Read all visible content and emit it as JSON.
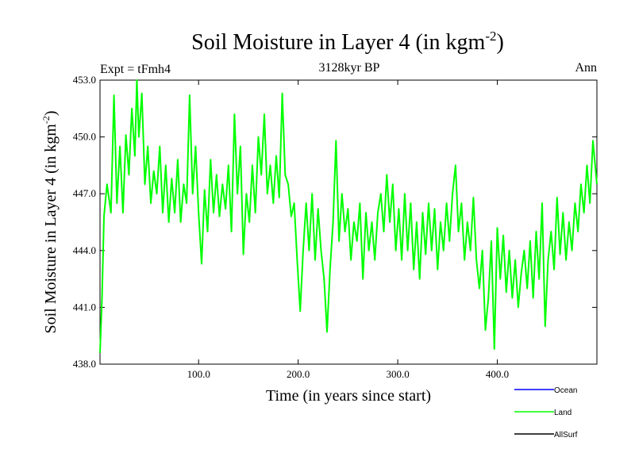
{
  "chart_data": {
    "type": "line",
    "title": "Soil Moisture in Layer 4 (in kgm",
    "title_sup": "-2",
    "title_close": ")",
    "subtitle": "3128kyr BP",
    "left_label": "Expt = tFmh4",
    "right_label": "Ann",
    "xlabel": "Time (in years since start)",
    "ylabel": "Soil Moisture in Layer 4 (in kgm",
    "ylabel_sup": "-2",
    "ylabel_close": ")",
    "xlim": [
      1,
      500
    ],
    "ylim": [
      438.0,
      453.0
    ],
    "xticks": [
      100,
      200,
      300,
      400
    ],
    "xtick_labels": [
      "100.0",
      "200.0",
      "300.0",
      "400.0"
    ],
    "yticks": [
      438,
      441,
      444,
      447,
      450,
      453
    ],
    "ytick_labels": [
      "438.0",
      "441.0",
      "444.0",
      "447.0",
      "450.0",
      "453.0"
    ],
    "legend": [
      {
        "name": "Ocean",
        "color": "#0000ff"
      },
      {
        "name": "Land",
        "color": "#00ff00"
      },
      {
        "name": "AllSurf",
        "color": "#000000"
      }
    ],
    "series": [
      {
        "name": "Land",
        "color": "#00ff00",
        "x": [
          1,
          3,
          5,
          8,
          12,
          15,
          18,
          21,
          24,
          27,
          30,
          33,
          36,
          38,
          40,
          43,
          46,
          49,
          52,
          55,
          58,
          61,
          64,
          67,
          70,
          73,
          76,
          79,
          82,
          85,
          88,
          91,
          94,
          97,
          100,
          103,
          106,
          109,
          112,
          115,
          118,
          121,
          124,
          127,
          130,
          133,
          136,
          139,
          142,
          145,
          148,
          151,
          154,
          157,
          160,
          163,
          166,
          169,
          172,
          175,
          178,
          181,
          184,
          187,
          190,
          193,
          196,
          199,
          202,
          205,
          208,
          211,
          214,
          217,
          220,
          223,
          226,
          229,
          232,
          235,
          238,
          241,
          244,
          247,
          250,
          253,
          256,
          259,
          262,
          265,
          268,
          271,
          274,
          277,
          280,
          283,
          286,
          289,
          292,
          295,
          298,
          301,
          304,
          307,
          310,
          313,
          316,
          319,
          322,
          325,
          328,
          331,
          334,
          337,
          340,
          343,
          346,
          349,
          352,
          355,
          358,
          361,
          364,
          367,
          370,
          373,
          376,
          379,
          382,
          385,
          388,
          391,
          394,
          397,
          400,
          403,
          406,
          409,
          412,
          415,
          418,
          421,
          424,
          427,
          430,
          433,
          436,
          439,
          442,
          445,
          448,
          451,
          454,
          457,
          460,
          463,
          466,
          469,
          472,
          475,
          478,
          481,
          484,
          487,
          490,
          493,
          496,
          500
        ],
        "values": [
          438.6,
          441.5,
          445.8,
          447.5,
          446.0,
          452.2,
          446.5,
          449.5,
          446.0,
          450.1,
          448.0,
          451.5,
          449.0,
          453.0,
          450.0,
          452.3,
          447.5,
          449.5,
          446.5,
          448.2,
          447.0,
          449.5,
          446.0,
          448.5,
          445.5,
          447.8,
          446.0,
          448.8,
          445.5,
          447.5,
          446.5,
          452.2,
          447.0,
          449.5,
          446.0,
          443.3,
          447.2,
          445.0,
          448.8,
          446.0,
          448.0,
          445.8,
          447.5,
          446.2,
          448.5,
          445.0,
          451.2,
          447.0,
          449.5,
          443.8,
          447.0,
          445.5,
          448.5,
          446.0,
          450.0,
          448.0,
          451.2,
          447.0,
          448.5,
          446.5,
          449.0,
          446.8,
          452.3,
          448.0,
          447.5,
          445.8,
          446.5,
          443.5,
          440.8,
          444.0,
          446.5,
          444.0,
          447.0,
          443.5,
          446.2,
          444.0,
          442.5,
          439.7,
          443.0,
          445.5,
          449.8,
          444.5,
          447.0,
          445.0,
          446.2,
          443.5,
          445.5,
          444.5,
          446.5,
          442.5,
          446.0,
          444.0,
          445.5,
          443.5,
          446.0,
          447.0,
          445.0,
          448.0,
          445.5,
          447.5,
          444.0,
          446.2,
          443.5,
          447.0,
          444.0,
          446.5,
          443.0,
          445.5,
          442.5,
          446.0,
          443.8,
          446.5,
          444.0,
          446.2,
          443.0,
          445.5,
          444.0,
          446.5,
          444.5,
          447.0,
          448.5,
          445.0,
          446.5,
          443.5,
          445.5,
          444.0,
          446.8,
          443.5,
          442.0,
          444.0,
          439.8,
          441.5,
          444.5,
          438.8,
          445.2,
          442.5,
          444.8,
          441.8,
          444.0,
          441.5,
          443.5,
          441.0,
          442.8,
          444.0,
          442.0,
          444.5,
          441.5,
          445.0,
          442.5,
          446.5,
          440.0,
          443.5,
          445.0,
          443.0,
          446.8,
          443.8,
          446.0,
          443.5,
          445.5,
          444.0,
          446.5,
          445.0,
          447.5,
          446.0,
          448.5,
          446.5,
          449.8,
          447.5
        ]
      }
    ]
  }
}
